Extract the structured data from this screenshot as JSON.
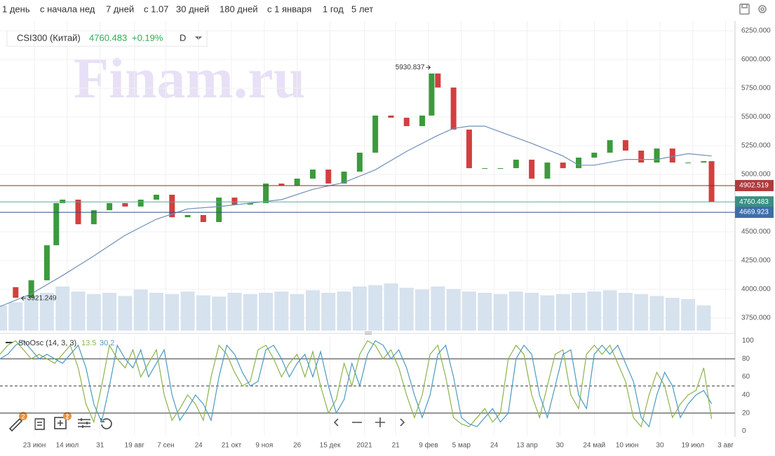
{
  "toolbar": {
    "periods": [
      "1 день",
      "с начала нед",
      "7 дней",
      "с 1.07",
      "30 дней",
      "180 дней",
      "с 1 января",
      "1 год",
      "5 лет"
    ]
  },
  "watermark": "Finam.ru",
  "bottom_toolbar": {
    "badges": [
      "2",
      "2"
    ]
  },
  "chart_data": [
    {
      "type": "candlestick",
      "title": "CSI300 (Китай)",
      "last_value": 4760.483,
      "change": "+0.19%",
      "interval": "D",
      "xlim": [
        0,
        470
      ],
      "xticks": [
        {
          "value": 22,
          "label": "23 июн"
        },
        {
          "value": 43,
          "label": "14 июл"
        },
        {
          "value": 64,
          "label": "31"
        },
        {
          "value": 86,
          "label": "19 авг"
        },
        {
          "value": 106,
          "label": "7 сен"
        },
        {
          "value": 127,
          "label": "24"
        },
        {
          "value": 148,
          "label": "21 окт"
        },
        {
          "value": 169,
          "label": "9 ноя"
        },
        {
          "value": 190,
          "label": "26"
        },
        {
          "value": 211,
          "label": "15 дек"
        },
        {
          "value": 233,
          "label": "2021"
        },
        {
          "value": 253,
          "label": "21"
        },
        {
          "value": 274,
          "label": "9 фев"
        },
        {
          "value": 295,
          "label": "5 мар"
        },
        {
          "value": 316,
          "label": "24"
        },
        {
          "value": 337,
          "label": "13 апр"
        },
        {
          "value": 358,
          "label": "30"
        },
        {
          "value": 380,
          "label": "24 май"
        },
        {
          "value": 401,
          "label": "10 июн"
        },
        {
          "value": 422,
          "label": "30"
        },
        {
          "value": 443,
          "label": "19 июл"
        },
        {
          "value": 464,
          "label": "3 авг"
        }
      ],
      "ylim": [
        3640,
        6335
      ],
      "yticks": [
        {
          "value": 3750,
          "label": "3750.000"
        },
        {
          "value": 4000,
          "label": "4000.000"
        },
        {
          "value": 4250,
          "label": "4250.000"
        },
        {
          "value": 4500,
          "label": "4500.000"
        },
        {
          "value": 5000,
          "label": "5000.000"
        },
        {
          "value": 5250,
          "label": "5250.000"
        },
        {
          "value": 5500,
          "label": "5500.000"
        },
        {
          "value": 5750,
          "label": "5750.000"
        },
        {
          "value": 6000,
          "label": "6000.000"
        },
        {
          "value": 6250,
          "label": "6250.000"
        }
      ],
      "grid": true,
      "series": [
        {
          "name": "CSI300 (Китай)",
          "up_color": "#3c9a3c",
          "down_color": "#d33f3f",
          "x": [
            0,
            10,
            20,
            30,
            36,
            40,
            50,
            60,
            70,
            80,
            90,
            100,
            110,
            120,
            130,
            140,
            150,
            160,
            170,
            180,
            190,
            200,
            210,
            220,
            230,
            240,
            250,
            260,
            270,
            276,
            280,
            290,
            300,
            310,
            320,
            330,
            340,
            350,
            360,
            370,
            380,
            390,
            400,
            410,
            420,
            430,
            440,
            450,
            455
          ],
          "values": [
            4018,
            3926,
            4078,
            4383,
            4750,
            4780,
            4566,
            4688,
            4750,
            4720,
            4780,
            4823,
            4627,
            4646,
            4585,
            4798,
            4737,
            4750,
            4920,
            4902,
            4963,
            5042,
            4920,
            5024,
            5189,
            5512,
            5493,
            5420,
            5512,
            5878,
            5756,
            5390,
            5054,
            5054,
            5054,
            5128,
            4963,
            5103,
            5054,
            5146,
            5189,
            5298,
            5207,
            5103,
            5225,
            5103,
            5103,
            5115,
            4760.483
          ]
        },
        {
          "color": "#6f8fb8",
          "x": [
            0,
            20,
            40,
            60,
            80,
            100,
            120,
            140,
            160,
            180,
            200,
            220,
            240,
            260,
            280,
            290,
            300,
            310,
            320,
            340,
            360,
            370,
            380,
            400,
            420,
            440,
            455
          ],
          "values": [
            3850,
            3960,
            4120,
            4290,
            4470,
            4610,
            4700,
            4720,
            4750,
            4780,
            4870,
            4930,
            5040,
            5200,
            5340,
            5400,
            5420,
            5420,
            5370,
            5270,
            5160,
            5080,
            5080,
            5130,
            5130,
            5180,
            5160
          ]
        }
      ],
      "volume": {
        "color": "#d6e2ee",
        "ylim": [
          0,
          100
        ],
        "x": [
          0,
          10,
          20,
          30,
          40,
          50,
          60,
          70,
          80,
          90,
          100,
          110,
          120,
          130,
          140,
          150,
          160,
          170,
          180,
          190,
          200,
          210,
          220,
          230,
          240,
          250,
          260,
          270,
          280,
          290,
          300,
          310,
          320,
          330,
          340,
          350,
          360,
          370,
          380,
          390,
          400,
          410,
          420,
          430,
          440,
          450
        ],
        "values": [
          40,
          45,
          55,
          60,
          70,
          62,
          58,
          60,
          55,
          65,
          60,
          58,
          62,
          56,
          54,
          60,
          58,
          60,
          62,
          58,
          64,
          60,
          62,
          70,
          72,
          75,
          68,
          65,
          70,
          66,
          62,
          60,
          58,
          62,
          60,
          56,
          58,
          60,
          62,
          64,
          60,
          58,
          55,
          52,
          50,
          40
        ]
      },
      "levels": [
        {
          "value": 4902.519,
          "color": "#b03a3a",
          "line": "#8b2a2a"
        },
        {
          "value": 4760.483,
          "color": "#3a8f84",
          "line": "#5aa89b"
        },
        {
          "value": 4669.923,
          "color": "#3d6ea8",
          "line": "#2d4f7f"
        }
      ],
      "annotations": [
        {
          "x": 276,
          "value": 5930.837
        },
        {
          "x": 12,
          "value": 3921.249
        }
      ]
    },
    {
      "type": "line",
      "title": "StoOsc (14, 3, 3)",
      "ylim": [
        -5,
        105
      ],
      "yticks": [
        0,
        20,
        40,
        60,
        80,
        100
      ],
      "levels": [
        {
          "value": 80,
          "style": "solid"
        },
        {
          "value": 50,
          "style": "dashed"
        },
        {
          "value": 20,
          "style": "solid"
        }
      ],
      "series": [
        {
          "color": "#8db34a",
          "x": [
            0,
            5,
            10,
            15,
            20,
            25,
            30,
            35,
            40,
            45,
            50,
            55,
            60,
            65,
            70,
            75,
            80,
            85,
            90,
            95,
            100,
            105,
            110,
            115,
            120,
            125,
            130,
            135,
            140,
            145,
            150,
            155,
            160,
            165,
            170,
            175,
            180,
            185,
            190,
            195,
            200,
            205,
            210,
            215,
            220,
            225,
            230,
            235,
            240,
            245,
            250,
            255,
            260,
            265,
            270,
            275,
            280,
            285,
            290,
            295,
            300,
            305,
            310,
            315,
            320,
            325,
            330,
            335,
            340,
            345,
            350,
            355,
            360,
            365,
            370,
            375,
            380,
            385,
            390,
            395,
            400,
            405,
            410,
            415,
            420,
            425,
            430,
            435,
            440,
            445,
            450,
            455
          ],
          "values": [
            85,
            95,
            100,
            90,
            80,
            85,
            80,
            75,
            85,
            95,
            70,
            30,
            10,
            50,
            95,
            80,
            70,
            90,
            60,
            75,
            90,
            40,
            12,
            25,
            40,
            30,
            12,
            60,
            95,
            85,
            65,
            50,
            55,
            90,
            95,
            80,
            60,
            75,
            85,
            60,
            88,
            50,
            20,
            35,
            75,
            50,
            85,
            100,
            95,
            80,
            90,
            70,
            40,
            15,
            40,
            85,
            95,
            60,
            15,
            8,
            5,
            15,
            25,
            10,
            20,
            80,
            95,
            85,
            40,
            15,
            50,
            85,
            90,
            40,
            25,
            85,
            95,
            85,
            95,
            75,
            55,
            15,
            5,
            40,
            65,
            50,
            15,
            30,
            40,
            45,
            70,
            13.5
          ]
        },
        {
          "color": "#4a9bc0",
          "x": [
            0,
            5,
            10,
            15,
            20,
            25,
            30,
            35,
            40,
            45,
            50,
            55,
            60,
            65,
            70,
            75,
            80,
            85,
            90,
            95,
            100,
            105,
            110,
            115,
            120,
            125,
            130,
            135,
            140,
            145,
            150,
            155,
            160,
            165,
            170,
            175,
            180,
            185,
            190,
            195,
            200,
            205,
            210,
            215,
            220,
            225,
            230,
            235,
            240,
            245,
            250,
            255,
            260,
            265,
            270,
            275,
            280,
            285,
            290,
            295,
            300,
            305,
            310,
            315,
            320,
            325,
            330,
            335,
            340,
            345,
            350,
            355,
            360,
            365,
            370,
            375,
            380,
            385,
            390,
            395,
            400,
            405,
            410,
            415,
            420,
            425,
            430,
            435,
            440,
            445,
            450,
            455
          ],
          "values": [
            80,
            85,
            95,
            100,
            90,
            80,
            85,
            80,
            75,
            85,
            95,
            70,
            30,
            10,
            50,
            95,
            80,
            70,
            90,
            60,
            75,
            90,
            40,
            12,
            25,
            40,
            30,
            12,
            60,
            95,
            85,
            65,
            50,
            55,
            90,
            95,
            80,
            60,
            75,
            85,
            60,
            88,
            50,
            20,
            35,
            75,
            50,
            85,
            100,
            95,
            80,
            90,
            70,
            40,
            15,
            40,
            85,
            95,
            60,
            15,
            8,
            5,
            15,
            25,
            10,
            20,
            80,
            95,
            85,
            40,
            15,
            50,
            85,
            90,
            40,
            25,
            85,
            95,
            85,
            95,
            75,
            55,
            15,
            5,
            40,
            65,
            50,
            15,
            30,
            40,
            45,
            30.2
          ]
        }
      ]
    }
  ]
}
